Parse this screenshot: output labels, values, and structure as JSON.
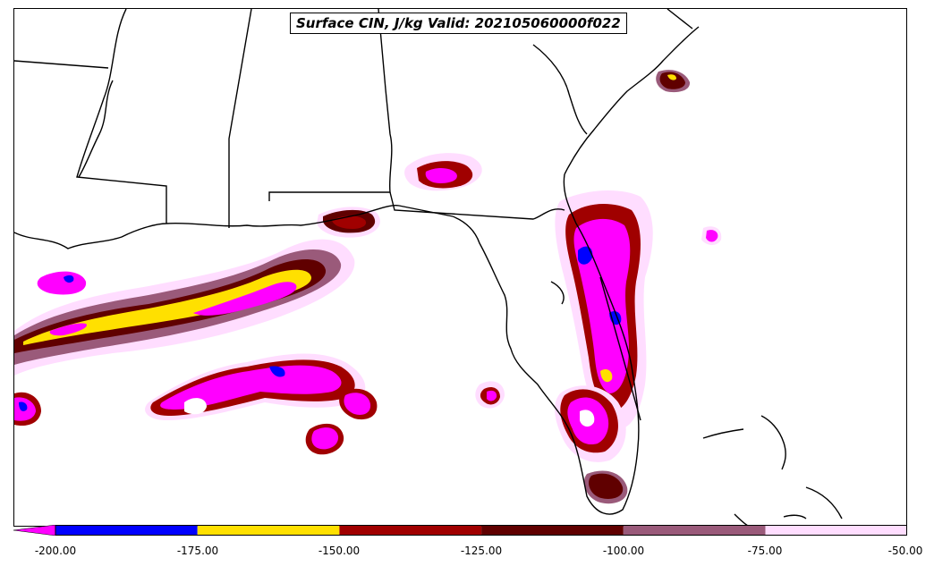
{
  "title": "Surface CIN, J/kg Valid: 202105060000f022",
  "colorbar": {
    "ticks": [
      "-200.00",
      "-175.00",
      "-150.00",
      "-125.00",
      "-100.00",
      "-75.00",
      "-50.00"
    ],
    "levels": [
      -200,
      -175,
      -150,
      -125,
      -100,
      -75,
      -50
    ],
    "colors": {
      "below_-200": "#ff00ff",
      "-200_-175": "#0000ff",
      "-175_-150": "#ffe000",
      "-150_-125": "#a00000",
      "-125_-100": "#600000",
      "-100_-75": "#9a5a7a",
      "-75_-50": "#ffddff"
    }
  },
  "map": {
    "region": "Gulf of Mexico / Florida",
    "borders_color": "#000000",
    "background": "#ffffff"
  }
}
